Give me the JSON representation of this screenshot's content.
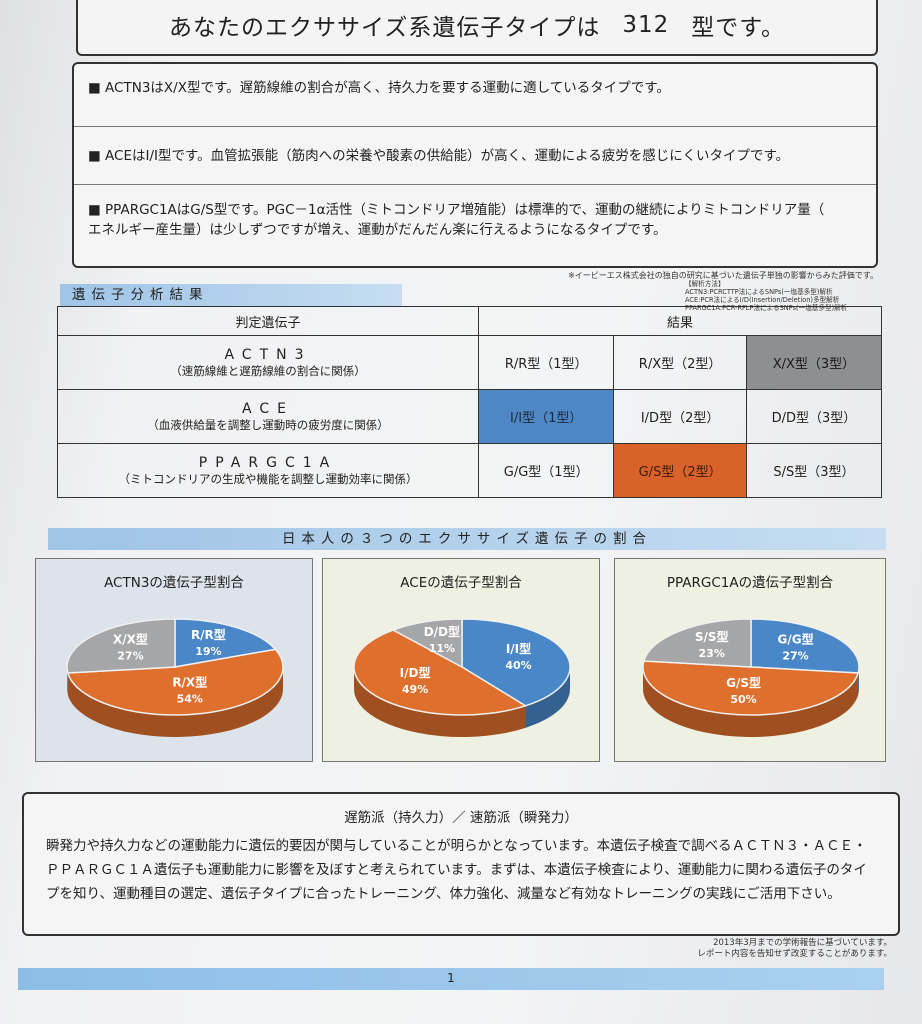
{
  "title": {
    "pre": "あなたのエクササイズ系遺伝子タイプは",
    "number": "312",
    "post": "型です。"
  },
  "types": [
    {
      "line1": "■ ACTN3はX/X型です。遅筋線維の割合が高く、持久力を要する運動に適しているタイプです。",
      "line2": ""
    },
    {
      "line1": "■ ACEはI/I型です。血管拡張能（筋肉への栄養や酸素の供給能）が高く、運動による疲労を感じにくいタイプです。",
      "line2": ""
    },
    {
      "line1": "■ PPARGC1AはG/S型です。PGC－1α活性（ミトコンドリア増殖能）は標準的で、運動の継続によりミトコンドリア量（",
      "line2": "エネルギー産生量）は少しずつですが増え、運動がだんだん楽に行えるようになるタイプです。"
    }
  ],
  "note_research": "※イービーエス株式会社の独自の研究に基づいた遺伝子単独の影響からみた評価です。",
  "method": {
    "title": "【解析方法】",
    "line1": "ACTN3:PCRCTTP法によるSNPs(一塩基多型)解析",
    "line2": "ACE:PCR法によるI/D(Insertion/Deletion)多型解析",
    "line3": "PPARGC1A:PCR-RFLP法によるSNPs(一塩基多型)解析"
  },
  "section1": "遺伝子分析結果",
  "table": {
    "col1": "判定遺伝子",
    "col2": "結果",
    "rows": [
      {
        "name": "ACTN3",
        "desc": "（速筋線維と遅筋線維の割合に関係）",
        "r1": "R/R型（1型）",
        "r2": "R/X型（2型）",
        "r3": "X/X型（3型）"
      },
      {
        "name": "ACE",
        "desc": "（血液供給量を調整し運動時の疲労度に関係）",
        "r1": "I/I型（1型）",
        "r2": "I/D型（2型）",
        "r3": "D/D型（3型）"
      },
      {
        "name": "PPARGC1A",
        "desc": "（ミトコンドリアの生成や機能を調整し運動効率に関係）",
        "r1": "G/G型（1型）",
        "r2": "G/S型（2型）",
        "r3": "S/S型（3型）"
      }
    ],
    "highlight_colors": {
      "blue": "#4d87c5",
      "orange": "#d9622a",
      "gray": "#8e8f92"
    }
  },
  "section2": "日本人の３つのエクササイズ遺伝子の割合",
  "chart_data": [
    {
      "type": "pie",
      "title": "ACTN3の遺伝子型割合",
      "slices": [
        {
          "label": "R/R型",
          "value": 19,
          "text": "19%",
          "color": "#4a87c8"
        },
        {
          "label": "R/X型",
          "value": 54,
          "text": "54%",
          "color": "#de6f2d"
        },
        {
          "label": "X/X型",
          "value": 27,
          "text": "27%",
          "color": "#a5a6a8"
        }
      ]
    },
    {
      "type": "pie",
      "title": "ACEの遺伝子型割合",
      "slices": [
        {
          "label": "I/I型",
          "value": 40,
          "text": "40%",
          "color": "#4a87c8"
        },
        {
          "label": "I/D型",
          "value": 49,
          "text": "49%",
          "color": "#de6f2d"
        },
        {
          "label": "D/D型",
          "value": 11,
          "text": "11%",
          "color": "#a5a6a8"
        }
      ]
    },
    {
      "type": "pie",
      "title": "PPARGC1Aの遺伝子型割合",
      "slices": [
        {
          "label": "G/G型",
          "value": 27,
          "text": "27%",
          "color": "#4a87c8"
        },
        {
          "label": "G/S型",
          "value": 50,
          "text": "50%",
          "color": "#de6f2d"
        },
        {
          "label": "S/S型",
          "value": 23,
          "text": "23%",
          "color": "#a5a6a8"
        }
      ]
    }
  ],
  "bottom": {
    "title": "遅筋派（持久力）／ 速筋派（瞬発力）",
    "text": "瞬発力や持久力などの運動能力に遺伝的要因が関与していることが明らかとなっています。本遺伝子検査で調べるＡＣＴＮ３・ＡＣＥ・ＰＰＡＲＧＣ１Ａ遺伝子も運動能力に影響を及ぼすと考えられています。まずは、本遺伝子検査により、運動能力に関わる遺伝子のタイプを知り、運動種目の選定、遺伝子タイプに合ったトレーニング、体力強化、減量など有効なトレーニングの実践にご活用下さい。"
  },
  "footer": {
    "line1": "2013年3月までの学術報告に基づいています。",
    "line2": "レポート内容を告知せず改変することがあります。"
  },
  "page_number": "1"
}
